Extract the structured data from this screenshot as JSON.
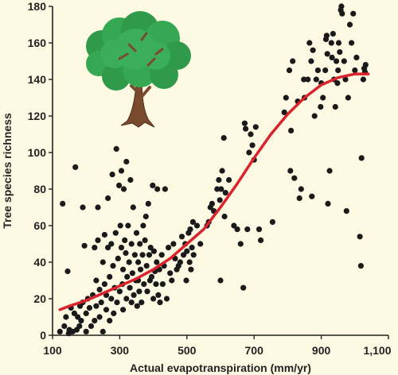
{
  "chart_data": {
    "type": "scatter",
    "title": "",
    "xlabel": "Actual evapotranspiration (mm/yr)",
    "ylabel": "Tree species richness",
    "xlim": [
      100,
      1100
    ],
    "ylim": [
      0,
      180
    ],
    "x_ticks": [
      100,
      300,
      500,
      700,
      900,
      1100
    ],
    "x_tick_labels": [
      "100",
      "300",
      "500",
      "700",
      "900",
      "1,100"
    ],
    "y_ticks": [
      0,
      20,
      40,
      60,
      80,
      100,
      120,
      140,
      160,
      180
    ],
    "y_tick_labels": [
      "0",
      "20",
      "40",
      "60",
      "80",
      "100",
      "120",
      "140",
      "160",
      "180"
    ],
    "grid": false,
    "colors": {
      "background": "#fdf9e3",
      "points": "#1a1a1a",
      "trend": "#d9232d",
      "axes": "#222222",
      "foliage": "#2e9a4a",
      "trunk": "#7a4a2e"
    },
    "decoration": "tree-illustration",
    "points": [
      [
        122,
        2
      ],
      [
        130,
        72
      ],
      [
        135,
        5
      ],
      [
        140,
        10
      ],
      [
        145,
        35
      ],
      [
        148,
        1
      ],
      [
        150,
        3
      ],
      [
        155,
        15
      ],
      [
        160,
        2
      ],
      [
        165,
        12
      ],
      [
        168,
        92
      ],
      [
        172,
        3
      ],
      [
        175,
        10
      ],
      [
        180,
        5
      ],
      [
        182,
        16
      ],
      [
        185,
        8
      ],
      [
        190,
        70
      ],
      [
        190,
        18
      ],
      [
        195,
        49
      ],
      [
        200,
        2
      ],
      [
        200,
        12
      ],
      [
        205,
        20
      ],
      [
        210,
        15
      ],
      [
        215,
        5
      ],
      [
        220,
        22
      ],
      [
        225,
        8
      ],
      [
        225,
        48
      ],
      [
        230,
        16
      ],
      [
        230,
        30
      ],
      [
        235,
        52
      ],
      [
        235,
        70
      ],
      [
        240,
        10
      ],
      [
        240,
        25
      ],
      [
        245,
        18
      ],
      [
        250,
        40
      ],
      [
        250,
        2
      ],
      [
        255,
        28
      ],
      [
        255,
        55
      ],
      [
        260,
        14
      ],
      [
        260,
        22
      ],
      [
        265,
        48
      ],
      [
        265,
        75
      ],
      [
        270,
        32
      ],
      [
        270,
        8
      ],
      [
        275,
        20
      ],
      [
        275,
        50
      ],
      [
        278,
        88
      ],
      [
        280,
        38
      ],
      [
        282,
        12
      ],
      [
        285,
        26
      ],
      [
        288,
        56
      ],
      [
        290,
        102
      ],
      [
        292,
        18
      ],
      [
        295,
        42
      ],
      [
        298,
        82
      ],
      [
        300,
        24
      ],
      [
        302,
        60
      ],
      [
        305,
        48
      ],
      [
        305,
        90
      ],
      [
        308,
        28
      ],
      [
        310,
        14
      ],
      [
        310,
        36
      ],
      [
        312,
        80
      ],
      [
        315,
        52
      ],
      [
        318,
        45
      ],
      [
        320,
        20
      ],
      [
        320,
        95
      ],
      [
        322,
        32
      ],
      [
        325,
        60
      ],
      [
        328,
        40
      ],
      [
        330,
        26
      ],
      [
        332,
        85
      ],
      [
        335,
        18
      ],
      [
        335,
        50
      ],
      [
        338,
        34
      ],
      [
        340,
        70
      ],
      [
        342,
        22
      ],
      [
        345,
        44
      ],
      [
        348,
        30
      ],
      [
        350,
        56
      ],
      [
        352,
        16
      ],
      [
        355,
        40
      ],
      [
        355,
        30
      ],
      [
        358,
        24
      ],
      [
        360,
        50
      ],
      [
        362,
        36
      ],
      [
        365,
        18
      ],
      [
        368,
        44
      ],
      [
        370,
        60
      ],
      [
        372,
        28
      ],
      [
        375,
        52
      ],
      [
        378,
        65
      ],
      [
        380,
        38
      ],
      [
        382,
        24
      ],
      [
        385,
        72
      ],
      [
        388,
        44
      ],
      [
        390,
        30
      ],
      [
        392,
        48
      ],
      [
        395,
        32
      ],
      [
        398,
        82
      ],
      [
        400,
        20
      ],
      [
        402,
        46
      ],
      [
        405,
        35
      ],
      [
        408,
        28
      ],
      [
        410,
        40
      ],
      [
        412,
        80
      ],
      [
        415,
        22
      ],
      [
        418,
        36
      ],
      [
        420,
        18
      ],
      [
        425,
        44
      ],
      [
        428,
        28
      ],
      [
        432,
        38
      ],
      [
        435,
        80
      ],
      [
        440,
        20
      ],
      [
        445,
        48
      ],
      [
        450,
        34
      ],
      [
        455,
        30
      ],
      [
        460,
        50
      ],
      [
        465,
        42
      ],
      [
        470,
        36
      ],
      [
        475,
        38
      ],
      [
        480,
        40
      ],
      [
        485,
        54
      ],
      [
        490,
        44
      ],
      [
        495,
        50
      ],
      [
        498,
        30
      ],
      [
        500,
        46
      ],
      [
        505,
        56
      ],
      [
        508,
        40
      ],
      [
        510,
        58
      ],
      [
        512,
        36
      ],
      [
        515,
        48
      ],
      [
        518,
        62
      ],
      [
        520,
        44
      ],
      [
        530,
        60
      ],
      [
        540,
        50
      ],
      [
        560,
        60
      ],
      [
        565,
        62
      ],
      [
        570,
        70
      ],
      [
        575,
        72
      ],
      [
        580,
        68
      ],
      [
        590,
        80
      ],
      [
        595,
        85
      ],
      [
        598,
        74
      ],
      [
        600,
        30
      ],
      [
        602,
        80
      ],
      [
        605,
        90
      ],
      [
        610,
        108
      ],
      [
        612,
        65
      ],
      [
        615,
        78
      ],
      [
        625,
        85
      ],
      [
        640,
        60
      ],
      [
        650,
        58
      ],
      [
        660,
        50
      ],
      [
        668,
        26
      ],
      [
        672,
        116
      ],
      [
        675,
        113
      ],
      [
        680,
        58
      ],
      [
        685,
        100
      ],
      [
        690,
        110
      ],
      [
        695,
        104
      ],
      [
        700,
        96
      ],
      [
        705,
        114
      ],
      [
        715,
        58
      ],
      [
        720,
        52
      ],
      [
        755,
        62
      ],
      [
        790,
        122
      ],
      [
        795,
        130
      ],
      [
        805,
        145
      ],
      [
        808,
        90
      ],
      [
        810,
        112
      ],
      [
        815,
        150
      ],
      [
        820,
        86
      ],
      [
        830,
        128
      ],
      [
        835,
        75
      ],
      [
        840,
        80
      ],
      [
        848,
        140
      ],
      [
        850,
        130
      ],
      [
        860,
        140
      ],
      [
        865,
        160
      ],
      [
        870,
        150
      ],
      [
        872,
        76
      ],
      [
        875,
        156
      ],
      [
        880,
        120
      ],
      [
        885,
        140
      ],
      [
        890,
        145
      ],
      [
        898,
        125
      ],
      [
        900,
        138
      ],
      [
        905,
        130
      ],
      [
        912,
        145
      ],
      [
        914,
        162
      ],
      [
        916,
        164
      ],
      [
        918,
        154
      ],
      [
        920,
        72
      ],
      [
        925,
        90
      ],
      [
        930,
        160
      ],
      [
        932,
        152
      ],
      [
        935,
        165
      ],
      [
        938,
        140
      ],
      [
        942,
        125
      ],
      [
        945,
        150
      ],
      [
        948,
        138
      ],
      [
        950,
        145
      ],
      [
        952,
        160
      ],
      [
        955,
        155
      ],
      [
        958,
        178
      ],
      [
        960,
        180
      ],
      [
        962,
        176
      ],
      [
        968,
        150
      ],
      [
        972,
        140
      ],
      [
        975,
        68
      ],
      [
        980,
        130
      ],
      [
        985,
        170
      ],
      [
        990,
        160
      ],
      [
        995,
        176
      ],
      [
        1000,
        145
      ],
      [
        1005,
        152
      ],
      [
        1015,
        54
      ],
      [
        1018,
        38
      ],
      [
        1020,
        97
      ],
      [
        1025,
        140
      ],
      [
        1028,
        146
      ],
      [
        1030,
        144
      ],
      [
        1032,
        148
      ]
    ],
    "trend": [
      [
        122,
        14
      ],
      [
        150,
        16
      ],
      [
        200,
        19
      ],
      [
        250,
        23
      ],
      [
        300,
        27
      ],
      [
        350,
        31
      ],
      [
        400,
        36
      ],
      [
        450,
        42
      ],
      [
        500,
        50
      ],
      [
        550,
        58
      ],
      [
        600,
        70
      ],
      [
        650,
        83
      ],
      [
        700,
        97
      ],
      [
        750,
        110
      ],
      [
        800,
        121
      ],
      [
        850,
        130
      ],
      [
        900,
        137
      ],
      [
        950,
        141
      ],
      [
        1000,
        143
      ],
      [
        1040,
        143
      ]
    ]
  }
}
